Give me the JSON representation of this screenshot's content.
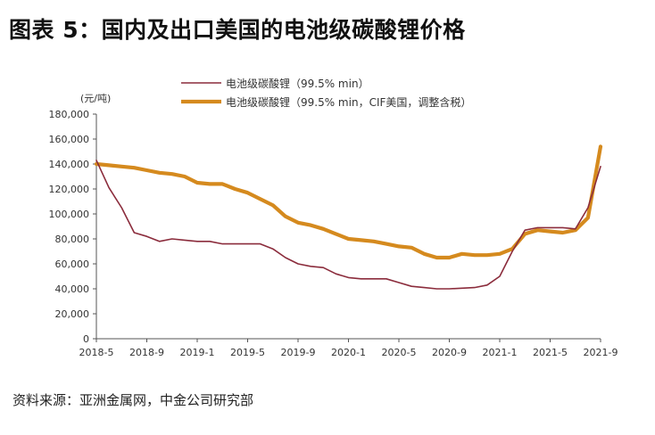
{
  "figure": {
    "title": "图表 5：国内及出口美国的电池级碳酸锂价格",
    "source": "资料来源：亚洲金属网，中金公司研究部"
  },
  "chart_data": {
    "type": "line",
    "ylabel": "(元/吨)",
    "ylim": [
      0,
      180000
    ],
    "yticks": [
      "180,000",
      "160,000",
      "140,000",
      "120,000",
      "100,000",
      "80,000",
      "60,000",
      "40,000",
      "20,000",
      "0"
    ],
    "xticks": [
      "2018-5",
      "2018-9",
      "2019-1",
      "2019-5",
      "2019-9",
      "2020-1",
      "2020-5",
      "2020-9",
      "2021-1",
      "2021-5",
      "2021-9"
    ],
    "grid": false,
    "legend_position": "top",
    "series": [
      {
        "name": "电池级碳酸锂（99.5% min）",
        "color": "#8b2c3c",
        "points": [
          [
            "2018-5",
            143000
          ],
          [
            "2018-6",
            121000
          ],
          [
            "2018-7",
            105000
          ],
          [
            "2018-8",
            85000
          ],
          [
            "2018-9",
            82000
          ],
          [
            "2018-10",
            78000
          ],
          [
            "2018-11",
            80000
          ],
          [
            "2018-12",
            79000
          ],
          [
            "2019-1",
            78000
          ],
          [
            "2019-2",
            78000
          ],
          [
            "2019-3",
            76000
          ],
          [
            "2019-4",
            76000
          ],
          [
            "2019-5",
            76000
          ],
          [
            "2019-6",
            76000
          ],
          [
            "2019-7",
            72000
          ],
          [
            "2019-8",
            65000
          ],
          [
            "2019-9",
            60000
          ],
          [
            "2019-10",
            58000
          ],
          [
            "2019-11",
            57000
          ],
          [
            "2019-12",
            52000
          ],
          [
            "2020-1",
            49000
          ],
          [
            "2020-2",
            48000
          ],
          [
            "2020-3",
            48000
          ],
          [
            "2020-4",
            48000
          ],
          [
            "2020-5",
            45000
          ],
          [
            "2020-6",
            42000
          ],
          [
            "2020-7",
            41000
          ],
          [
            "2020-8",
            40000
          ],
          [
            "2020-9",
            40000
          ],
          [
            "2020-10",
            40500
          ],
          [
            "2020-11",
            41000
          ],
          [
            "2020-12",
            43000
          ],
          [
            "2021-1",
            50000
          ],
          [
            "2021-2",
            70000
          ],
          [
            "2021-3",
            87000
          ],
          [
            "2021-4",
            89000
          ],
          [
            "2021-5",
            89000
          ],
          [
            "2021-6",
            89000
          ],
          [
            "2021-7",
            88000
          ],
          [
            "2021-8",
            105000
          ],
          [
            "2021-9",
            138000
          ]
        ]
      },
      {
        "name": "电池级碳酸锂（99.5% min，CIF美国，调整含税）",
        "color": "#d58a1e",
        "points": [
          [
            "2018-5",
            140000
          ],
          [
            "2018-6",
            139000
          ],
          [
            "2018-7",
            138000
          ],
          [
            "2018-8",
            137000
          ],
          [
            "2018-9",
            135000
          ],
          [
            "2018-10",
            133000
          ],
          [
            "2018-11",
            132000
          ],
          [
            "2018-12",
            130000
          ],
          [
            "2019-1",
            125000
          ],
          [
            "2019-2",
            124000
          ],
          [
            "2019-3",
            124000
          ],
          [
            "2019-4",
            120000
          ],
          [
            "2019-5",
            117000
          ],
          [
            "2019-6",
            112000
          ],
          [
            "2019-7",
            107000
          ],
          [
            "2019-8",
            98000
          ],
          [
            "2019-9",
            93000
          ],
          [
            "2019-10",
            91000
          ],
          [
            "2019-11",
            88000
          ],
          [
            "2019-12",
            84000
          ],
          [
            "2020-1",
            80000
          ],
          [
            "2020-2",
            79000
          ],
          [
            "2020-3",
            78000
          ],
          [
            "2020-4",
            76000
          ],
          [
            "2020-5",
            74000
          ],
          [
            "2020-6",
            73000
          ],
          [
            "2020-7",
            68000
          ],
          [
            "2020-8",
            65000
          ],
          [
            "2020-9",
            65000
          ],
          [
            "2020-10",
            68000
          ],
          [
            "2020-11",
            67000
          ],
          [
            "2020-12",
            67000
          ],
          [
            "2021-1",
            68000
          ],
          [
            "2021-2",
            72000
          ],
          [
            "2021-3",
            84000
          ],
          [
            "2021-4",
            87000
          ],
          [
            "2021-5",
            86000
          ],
          [
            "2021-6",
            85000
          ],
          [
            "2021-7",
            87000
          ],
          [
            "2021-8",
            97000
          ],
          [
            "2021-9",
            154000
          ]
        ]
      }
    ]
  }
}
